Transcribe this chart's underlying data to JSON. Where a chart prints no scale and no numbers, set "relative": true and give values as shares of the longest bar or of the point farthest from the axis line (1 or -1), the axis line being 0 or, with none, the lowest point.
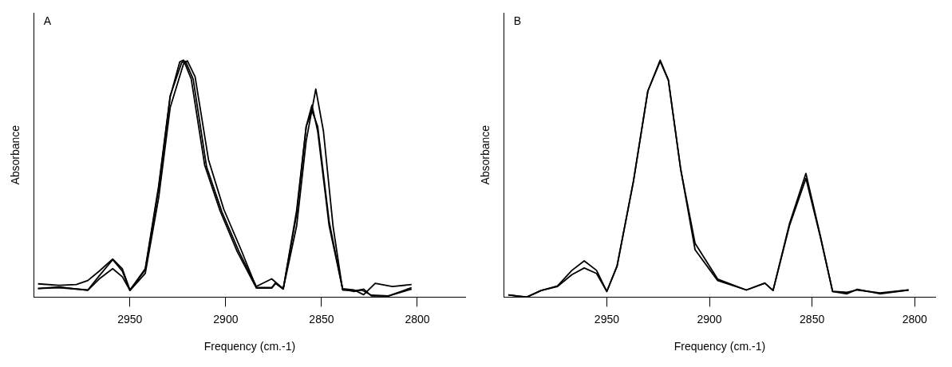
{
  "chart_data": [
    {
      "type": "line",
      "title": "A",
      "xlabel": "Frequency (cm.-1)",
      "ylabel": "Absorbance",
      "relative": true,
      "xlim": [
        3000,
        2775
      ],
      "xticks": [
        2950,
        2900,
        2850,
        2800
      ],
      "grid": false,
      "legend": false,
      "marker": "none",
      "series": [
        {
          "color": "#000000",
          "x": [
            2998,
            2987,
            2972,
            2966,
            2959,
            2954,
            2950,
            2942,
            2935,
            2929,
            2924,
            2922,
            2918,
            2911,
            2903,
            2894,
            2884,
            2876,
            2874,
            2870,
            2863,
            2858,
            2855,
            2852,
            2846,
            2839,
            2833,
            2828,
            2824,
            2815,
            2803
          ],
          "values": [
            0.036,
            0.043,
            0.029,
            0.077,
            0.12,
            0.086,
            0.029,
            0.115,
            0.46,
            0.845,
            0.993,
            1.0,
            0.92,
            0.557,
            0.365,
            0.192,
            0.038,
            0.038,
            0.058,
            0.034,
            0.365,
            0.72,
            0.787,
            0.72,
            0.317,
            0.034,
            0.024,
            0.034,
            0.005,
            0.005,
            0.034
          ]
        },
        {
          "color": "#000000",
          "x": [
            2998,
            2987,
            2972,
            2966,
            2959,
            2954,
            2950,
            2942,
            2935,
            2929,
            2922,
            2920,
            2916,
            2909,
            2901,
            2892,
            2884,
            2876,
            2874,
            2870,
            2863,
            2858,
            2853,
            2849,
            2844,
            2839,
            2833,
            2829,
            2824,
            2815,
            2803
          ],
          "values": [
            0.036,
            0.04,
            0.03,
            0.09,
            0.158,
            0.11,
            0.028,
            0.1,
            0.42,
            0.8,
            0.985,
            0.997,
            0.93,
            0.58,
            0.37,
            0.2,
            0.04,
            0.04,
            0.06,
            0.035,
            0.3,
            0.66,
            0.878,
            0.7,
            0.3,
            0.03,
            0.028,
            0.03,
            0.008,
            0.005,
            0.04
          ]
        },
        {
          "color": "#000000",
          "x": [
            2998,
            2987,
            2978,
            2972,
            2966,
            2959,
            2954,
            2950,
            2942,
            2935,
            2929,
            2923,
            2921,
            2917,
            2910,
            2902,
            2893,
            2884,
            2876,
            2870,
            2863,
            2858,
            2855,
            2852,
            2846,
            2839,
            2833,
            2828,
            2822,
            2813,
            2803
          ],
          "values": [
            0.056,
            0.05,
            0.053,
            0.07,
            0.11,
            0.161,
            0.12,
            0.03,
            0.12,
            0.47,
            0.85,
            0.99,
            0.995,
            0.92,
            0.55,
            0.36,
            0.19,
            0.045,
            0.077,
            0.035,
            0.35,
            0.72,
            0.81,
            0.7,
            0.3,
            0.035,
            0.03,
            0.01,
            0.058,
            0.045,
            0.053
          ]
        }
      ]
    },
    {
      "type": "line",
      "title": "B",
      "xlabel": "Frequency (cm.-1)",
      "ylabel": "Absorbance",
      "relative": true,
      "xlim": [
        3000,
        2790
      ],
      "xticks": [
        2950,
        2900,
        2850,
        2800
      ],
      "grid": false,
      "legend": false,
      "marker": "none",
      "series": [
        {
          "color": "#000000",
          "x": [
            2998,
            2989,
            2982,
            2974,
            2967,
            2961,
            2955,
            2950,
            2945,
            2937,
            2930,
            2924,
            2920,
            2914,
            2907,
            2896,
            2882,
            2873,
            2869,
            2861,
            2853,
            2846,
            2840,
            2833,
            2828,
            2817,
            2803
          ],
          "values": [
            0.009,
            0,
            0.028,
            0.047,
            0.113,
            0.153,
            0.113,
            0.024,
            0.132,
            0.49,
            0.87,
            1.0,
            0.917,
            0.539,
            0.227,
            0.076,
            0.03,
            0.059,
            0.028,
            0.302,
            0.501,
            0.255,
            0.024,
            0.014,
            0.033,
            0.014,
            0.03
          ]
        },
        {
          "color": "#000000",
          "x": [
            2998,
            2989,
            2982,
            2974,
            2967,
            2961,
            2955,
            2950,
            2945,
            2937,
            2930,
            2924,
            2920,
            2914,
            2907,
            2896,
            2882,
            2873,
            2869,
            2861,
            2853,
            2846,
            2840,
            2833,
            2828,
            2817,
            2803
          ],
          "values": [
            0.009,
            0,
            0.028,
            0.045,
            0.095,
            0.123,
            0.1,
            0.024,
            0.13,
            0.49,
            0.87,
            0.995,
            0.915,
            0.54,
            0.2,
            0.07,
            0.03,
            0.059,
            0.028,
            0.31,
            0.522,
            0.26,
            0.024,
            0.02,
            0.03,
            0.018,
            0.03
          ]
        }
      ]
    }
  ]
}
